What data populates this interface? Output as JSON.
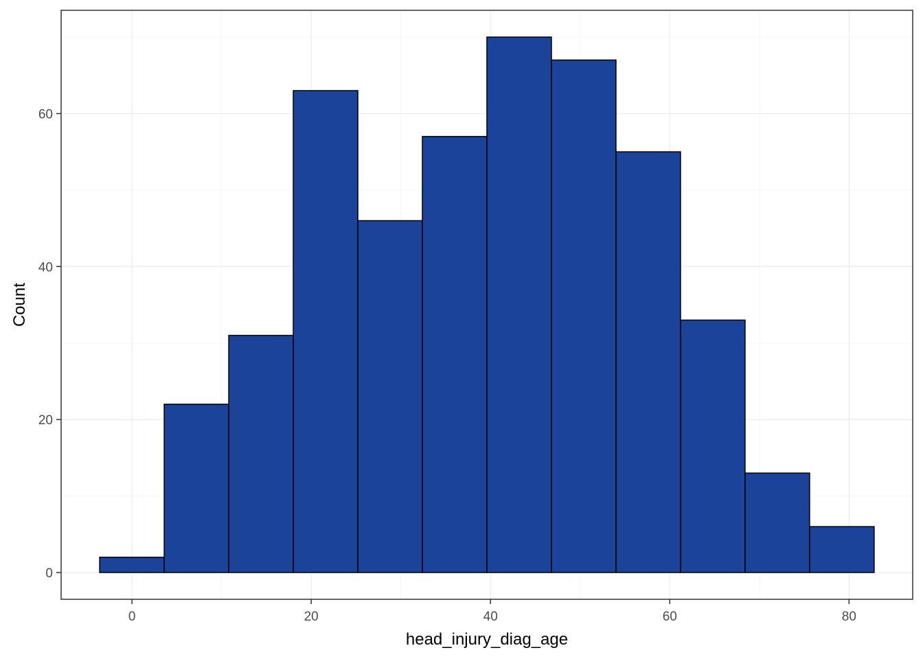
{
  "chart_data": {
    "type": "bar",
    "subtype": "histogram",
    "title": "",
    "xlabel": "head_injury_diag_age",
    "ylabel": "Count",
    "bins": [
      {
        "x0": -3.6,
        "x1": 3.6,
        "count": 2
      },
      {
        "x0": 3.6,
        "x1": 10.8,
        "count": 22
      },
      {
        "x0": 10.8,
        "x1": 18.0,
        "count": 31
      },
      {
        "x0": 18.0,
        "x1": 25.2,
        "count": 63
      },
      {
        "x0": 25.2,
        "x1": 32.4,
        "count": 46
      },
      {
        "x0": 32.4,
        "x1": 39.6,
        "count": 57
      },
      {
        "x0": 39.6,
        "x1": 46.8,
        "count": 70
      },
      {
        "x0": 46.8,
        "x1": 54.0,
        "count": 67
      },
      {
        "x0": 54.0,
        "x1": 61.2,
        "count": 55
      },
      {
        "x0": 61.2,
        "x1": 68.4,
        "count": 33
      },
      {
        "x0": 68.4,
        "x1": 75.6,
        "count": 13
      },
      {
        "x0": 75.6,
        "x1": 82.8,
        "count": 6
      }
    ],
    "xlim": [
      -7.9,
      87.1
    ],
    "ylim": [
      -3.5,
      73.5
    ],
    "x_ticks": [
      0,
      20,
      40,
      60,
      80
    ],
    "y_ticks": [
      0,
      20,
      40,
      60
    ],
    "x_tick_labels": [
      "0",
      "20",
      "40",
      "60",
      "80"
    ],
    "y_tick_labels": [
      "0",
      "20",
      "40",
      "60"
    ],
    "grid": true,
    "legend": "none",
    "colors": {
      "bar_fill": "#1a4399",
      "bar_stroke": "#000000",
      "grid_major": "#ebebeb",
      "grid_minor": "#f5f5f5",
      "panel_border": "#333333"
    }
  }
}
